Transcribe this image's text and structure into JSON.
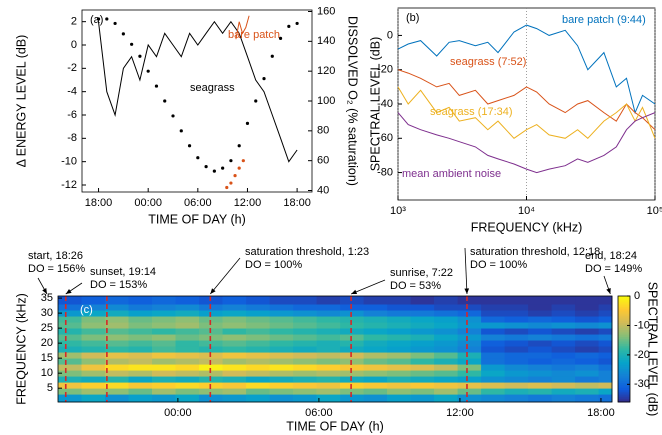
{
  "chart_data": [
    {
      "type": "line",
      "label": "(a)",
      "xlabel": "TIME OF DAY (h)",
      "ylabel": "Δ ENERGY LEVEL (dB)",
      "y2label": "DISSOLVED O₂ (% saturation)",
      "xlim": [
        16,
        43.8
      ],
      "xticks": [
        {
          "value": 18,
          "label": "18:00"
        },
        {
          "value": 24,
          "label": "00:00"
        },
        {
          "value": 30,
          "label": "06:00"
        },
        {
          "value": 36,
          "label": "12:00"
        },
        {
          "value": 42,
          "label": "18:00"
        }
      ],
      "ylim": [
        -12.6,
        3
      ],
      "yticks": [
        -12,
        -10,
        -8,
        -6,
        -4,
        -2,
        0,
        2
      ],
      "y2lim": [
        39,
        161
      ],
      "y2ticks": [
        40,
        60,
        80,
        100,
        120,
        140,
        160
      ],
      "series": [
        {
          "name": "seagrass",
          "color": "#000000",
          "style": "line",
          "x": [
            18,
            19,
            20,
            21,
            22,
            23,
            24,
            25,
            26,
            27,
            28,
            29,
            30,
            31,
            32,
            33,
            34,
            35,
            36,
            37,
            38,
            39,
            40,
            41,
            42
          ],
          "values": [
            2,
            -4,
            -6,
            -2,
            -1,
            -3,
            0,
            -1,
            1,
            0,
            -1,
            1,
            0,
            1,
            2,
            1,
            2,
            1,
            -1,
            -3,
            -4,
            -6,
            -8,
            -10,
            -9
          ]
        },
        {
          "name": "bare patch",
          "color": "#D95319",
          "style": "line",
          "x": [
            34.6,
            35,
            35.4,
            35.8,
            36.2
          ],
          "values": [
            0.5,
            2,
            1,
            1.5,
            2.5
          ]
        },
        {
          "color": "#000000",
          "style": "dots",
          "axis": "y2",
          "x": [
            18,
            19,
            20,
            21,
            22,
            23,
            24,
            25,
            26,
            27,
            28,
            29,
            30,
            31,
            32,
            33,
            34,
            35,
            36,
            37,
            38,
            39,
            40,
            41,
            42
          ],
          "values": [
            155,
            155,
            152,
            145,
            138,
            130,
            120,
            110,
            100,
            90,
            80,
            70,
            62,
            56,
            53,
            55,
            60,
            70,
            85,
            100,
            115,
            130,
            142,
            150,
            152
          ]
        },
        {
          "color": "#D95319",
          "style": "dots",
          "axis": "y2",
          "x": [
            33.5,
            34,
            34.5,
            35,
            35.5
          ],
          "values": [
            42,
            45,
            50,
            55,
            60
          ]
        }
      ]
    },
    {
      "type": "line",
      "log_x": true,
      "grid": "x",
      "label": "(b)",
      "xlabel": "FREQUENCY (kHz)",
      "ylabel": "SPECTRAL LEVEL (dB)",
      "xlim": [
        1000,
        100000
      ],
      "xticks": [
        {
          "value": 1000,
          "label": "10³"
        },
        {
          "value": 10000,
          "label": "10⁴"
        },
        {
          "value": 100000,
          "label": "10⁵"
        }
      ],
      "ylim": [
        -96,
        16
      ],
      "yticks": [
        -80,
        -60,
        -40,
        -20,
        0
      ],
      "x": [
        1000,
        1200,
        1500,
        2000,
        2500,
        3000,
        4000,
        5000,
        6000,
        8000,
        10000,
        12000,
        15000,
        20000,
        25000,
        30000,
        40000,
        50000,
        60000,
        70000,
        80000,
        100000
      ],
      "series": [
        {
          "name": "bare patch (9:44)",
          "color": "#0072BD",
          "values": [
            -8,
            -5,
            -3,
            -12,
            -4,
            -3,
            -6,
            -4,
            -10,
            2,
            6,
            4,
            0,
            3,
            -6,
            -20,
            -10,
            -30,
            -25,
            -45,
            -35,
            -40
          ]
        },
        {
          "name": "seagrass (7:52)",
          "color": "#D95319",
          "values": [
            -20,
            -22,
            -25,
            -30,
            -28,
            -35,
            -32,
            -40,
            -38,
            -35,
            -30,
            -33,
            -40,
            -45,
            -40,
            -38,
            -45,
            -50,
            -40,
            -45,
            -48,
            -55
          ]
        },
        {
          "name": "seagrass (17:34)",
          "color": "#EDB120",
          "values": [
            -30,
            -40,
            -32,
            -45,
            -42,
            -50,
            -48,
            -55,
            -50,
            -60,
            -55,
            -52,
            -58,
            -60,
            -55,
            -60,
            -50,
            -45,
            -40,
            -50,
            -42,
            -60
          ]
        },
        {
          "name": "mean ambient noise",
          "color": "#7E2F8E",
          "values": [
            -45,
            -52,
            -55,
            -58,
            -60,
            -62,
            -65,
            -70,
            -72,
            -75,
            -78,
            -80,
            -78,
            -76,
            -72,
            -74,
            -70,
            -65,
            -55,
            -50,
            -48,
            -45
          ]
        }
      ]
    },
    {
      "type": "heatmap",
      "label": "(c)",
      "xlabel": "TIME OF DAY (h)",
      "ylabel": "FREQUENCY (kHz)",
      "colorbar_label": "SPECTRAL LEVEL (dB)",
      "colormap": "parula",
      "xlim": [
        18.9,
        42.47
      ],
      "xticks": [
        {
          "value": 24,
          "label": "00:00"
        },
        {
          "value": 30,
          "label": "06:00"
        },
        {
          "value": 36,
          "label": "12:00"
        },
        {
          "value": 42,
          "label": "18:00"
        }
      ],
      "ylim": [
        0.4,
        35.7
      ],
      "yticks": [
        5,
        10,
        15,
        20,
        25,
        30,
        35
      ],
      "clim": [
        -36,
        0
      ],
      "cticks": [
        -30,
        -20,
        -10,
        0
      ],
      "x_edges": [
        18.9,
        19.9,
        20.9,
        21.9,
        22.9,
        23.9,
        24.9,
        25.9,
        26.9,
        27.9,
        28.9,
        29.9,
        30.9,
        31.9,
        32.9,
        33.9,
        34.9,
        35.9,
        36.9,
        37.9,
        38.9,
        39.9,
        40.9,
        41.9,
        42.47
      ],
      "y_edges": [
        0.4,
        3,
        5,
        7,
        9,
        11,
        13,
        15,
        17,
        19,
        21,
        23,
        25,
        27,
        29,
        31,
        33,
        35.7
      ],
      "z": [
        [
          -24,
          -22,
          -25,
          -23,
          -24,
          -22,
          -25,
          -24,
          -23,
          -25,
          -24,
          -22,
          -24,
          -25,
          -23,
          -24,
          -22,
          -25,
          -26,
          -27,
          -28,
          -27,
          -28,
          -29
        ],
        [
          -14,
          -12,
          -13,
          -15,
          -12,
          -14,
          -13,
          -12,
          -15,
          -14,
          -13,
          -12,
          -14,
          -15,
          -13,
          -14,
          -12,
          -15,
          -18,
          -20,
          -19,
          -21,
          -20,
          -22
        ],
        [
          -6,
          -4,
          -3,
          -5,
          -4,
          -3,
          -4,
          -5,
          -3,
          -4,
          -5,
          -6,
          -4,
          -5,
          -6,
          -5,
          -6,
          -7,
          -8,
          -9,
          -8,
          -9,
          -10,
          -9
        ],
        [
          -20,
          -21,
          -19,
          -22,
          -20,
          -21,
          -19,
          -20,
          -22,
          -21,
          -20,
          -19,
          -21,
          -22,
          -20,
          -21,
          -22,
          -23,
          -25,
          -26,
          -27,
          -26,
          -28,
          -27
        ],
        [
          -14,
          -12,
          -10,
          -11,
          -9,
          -10,
          -11,
          -9,
          -10,
          -11,
          -12,
          -11,
          -12,
          -13,
          -14,
          -15,
          -16,
          -18,
          -22,
          -24,
          -25,
          -26,
          -25,
          -27
        ],
        [
          -10,
          -6,
          -3,
          -2,
          -2,
          -3,
          -1,
          -2,
          -3,
          -2,
          -3,
          -4,
          -5,
          -6,
          -7,
          -8,
          -10,
          -14,
          -24,
          -26,
          -27,
          -28,
          -27,
          -29
        ],
        [
          -16,
          -13,
          -11,
          -10,
          -12,
          -11,
          -10,
          -12,
          -11,
          -12,
          -13,
          -14,
          -13,
          -15,
          -16,
          -18,
          -20,
          -22,
          -29,
          -30,
          -31,
          -30,
          -31,
          -32
        ],
        [
          -12,
          -9,
          -7,
          -8,
          -6,
          -7,
          -8,
          -6,
          -7,
          -8,
          -9,
          -10,
          -9,
          -11,
          -12,
          -14,
          -16,
          -20,
          -29,
          -30,
          -30,
          -31,
          -30,
          -31
        ],
        [
          -20,
          -19,
          -18,
          -19,
          -17,
          -18,
          -19,
          -18,
          -19,
          -20,
          -21,
          -20,
          -21,
          -22,
          -23,
          -24,
          -25,
          -27,
          -32,
          -33,
          -32,
          -33,
          -34,
          -33
        ],
        [
          -18,
          -17,
          -16,
          -17,
          -16,
          -18,
          -17,
          -16,
          -17,
          -18,
          -19,
          -20,
          -19,
          -21,
          -22,
          -23,
          -24,
          -26,
          -31,
          -32,
          -33,
          -32,
          -33,
          -32
        ],
        [
          -16,
          -14,
          -13,
          -14,
          -13,
          -15,
          -14,
          -13,
          -14,
          -15,
          -16,
          -17,
          -16,
          -18,
          -19,
          -20,
          -22,
          -24,
          -27,
          -28,
          -27,
          -28,
          -29,
          -28
        ],
        [
          -19,
          -17,
          -16,
          -17,
          -18,
          -17,
          -16,
          -18,
          -17,
          -18,
          -19,
          -20,
          -21,
          -22,
          -23,
          -24,
          -25,
          -27,
          -32,
          -33,
          -32,
          -33,
          -34,
          -33
        ],
        [
          -16,
          -13,
          -12,
          -14,
          -13,
          -12,
          -14,
          -13,
          -14,
          -15,
          -16,
          -17,
          -18,
          -19,
          -20,
          -21,
          -22,
          -24,
          -24,
          -25,
          -26,
          -25,
          -26,
          -25
        ],
        [
          -17,
          -14,
          -13,
          -15,
          -14,
          -13,
          -15,
          -14,
          -15,
          -16,
          -17,
          -18,
          -19,
          -20,
          -21,
          -22,
          -23,
          -25,
          -30,
          -31,
          -30,
          -31,
          -32,
          -31
        ],
        [
          -24,
          -22,
          -21,
          -23,
          -22,
          -21,
          -23,
          -22,
          -23,
          -24,
          -25,
          -26,
          -25,
          -27,
          -28,
          -28,
          -29,
          -30,
          -33,
          -33,
          -34,
          -33,
          -34,
          -33
        ],
        [
          -29,
          -27,
          -26,
          -28,
          -27,
          -26,
          -28,
          -27,
          -28,
          -29,
          -30,
          -30,
          -31,
          -31,
          -32,
          -32,
          -33,
          -33,
          -34,
          -34,
          -35,
          -34,
          -35,
          -34
        ],
        [
          -32,
          -31,
          -30,
          -31,
          -30,
          -31,
          -32,
          -31,
          -32,
          -33,
          -33,
          -34,
          -33,
          -34,
          -34,
          -35,
          -34,
          -35,
          -35,
          -35,
          -35,
          -35,
          -35,
          -35
        ]
      ],
      "marker_lines": {
        "color": "#d62728",
        "x": [
          19.23,
          20.98,
          25.38,
          31.37,
          36.3
        ]
      },
      "events": [
        {
          "x": 18.43,
          "lines": [
            "start, 18:26",
            "DO = 156%"
          ]
        },
        {
          "x": 19.23,
          "lines": [
            "sunset, 19:14",
            "DO = 153%"
          ]
        },
        {
          "x": 25.38,
          "lines": [
            "saturation threshold, 1:23",
            "DO = 100%"
          ]
        },
        {
          "x": 31.37,
          "lines": [
            "sunrise, 7:22",
            "DO = 53%"
          ]
        },
        {
          "x": 36.3,
          "lines": [
            "saturation threshold, 12:18",
            "DO = 100%"
          ]
        },
        {
          "x": 42.4,
          "lines": [
            "end, 18:24",
            "DO = 149%"
          ]
        }
      ]
    }
  ]
}
